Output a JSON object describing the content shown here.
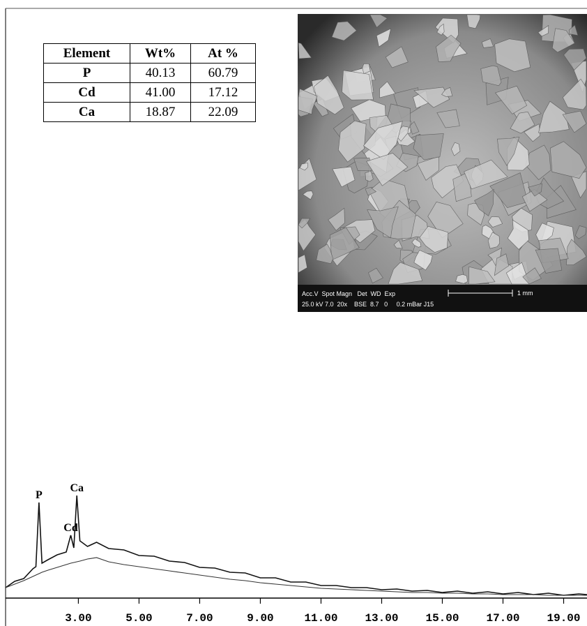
{
  "table": {
    "header": [
      "Element",
      "Wt%",
      "At %"
    ],
    "rows": [
      [
        "P",
        "40.13",
        "60.79"
      ],
      [
        "Cd",
        "41.00",
        "17.12"
      ],
      [
        "Ca",
        "18.87",
        "22.09"
      ]
    ]
  },
  "sem_image": {
    "info_line_1": "Acc.V  Spot Magn   Det  WD  Exp",
    "info_line_2": "25.0 kV 7.0  20x    BSE  8.7   0     0.2 mBar J15",
    "scale_label": "1 mm"
  },
  "chart_data": {
    "type": "line",
    "x": [
      0.6,
      0.9,
      1.2,
      1.5,
      1.6,
      1.7,
      1.8,
      2.0,
      2.3,
      2.6,
      2.75,
      2.85,
      2.95,
      3.05,
      3.3,
      3.6,
      4.0,
      4.5,
      5.0,
      5.5,
      6.0,
      6.5,
      7.0,
      7.5,
      8.0,
      8.5,
      9.0,
      9.5,
      10.0,
      10.5,
      11.0,
      11.5,
      12.0,
      12.5,
      13.0,
      13.5,
      14.0,
      14.5,
      15.0,
      15.5,
      16.0,
      16.5,
      17.0,
      17.5,
      18.0,
      18.5,
      19.0,
      19.5,
      19.77
    ],
    "series": [
      {
        "color": "#111111",
        "values": [
          15,
          24,
          28,
          42,
          45,
          137,
          50,
          55,
          62,
          66,
          90,
          72,
          147,
          82,
          74,
          80,
          71,
          69,
          61,
          60,
          53,
          51,
          44,
          43,
          37,
          36,
          29,
          29,
          23,
          23,
          18,
          18,
          15,
          15,
          12,
          13,
          10,
          11,
          8,
          10,
          7,
          9,
          6,
          8,
          5,
          7,
          4,
          6,
          5
        ]
      },
      {
        "color": "#333333",
        "values": [
          15,
          20,
          25,
          31,
          33,
          35,
          37,
          40,
          44,
          48,
          50,
          51,
          52,
          53,
          56,
          58,
          52,
          48,
          45,
          42,
          39,
          36,
          33,
          30,
          27,
          25,
          22,
          20,
          18,
          16,
          14,
          13,
          12,
          11,
          10,
          9,
          8,
          8,
          7,
          7,
          6,
          6,
          5,
          5,
          5,
          4,
          4,
          4,
          4
        ]
      }
    ],
    "annotations": [
      {
        "text": "P",
        "x": 1.7
      },
      {
        "text": "Cd",
        "x": 2.75
      },
      {
        "text": "Ca",
        "x": 2.95
      }
    ],
    "xlim": [
      0.6,
      19.77
    ],
    "ylim": [
      0,
      150
    ],
    "xticks": [
      {
        "value": 3,
        "label": "3.00"
      },
      {
        "value": 5,
        "label": "5.00"
      },
      {
        "value": 7,
        "label": "7.00"
      },
      {
        "value": 9,
        "label": "9.00"
      },
      {
        "value": 11,
        "label": "11.00"
      },
      {
        "value": 13,
        "label": "13.00"
      },
      {
        "value": 15,
        "label": "15.00"
      },
      {
        "value": 17,
        "label": "17.00"
      },
      {
        "value": 19,
        "label": "19.00"
      }
    ]
  }
}
